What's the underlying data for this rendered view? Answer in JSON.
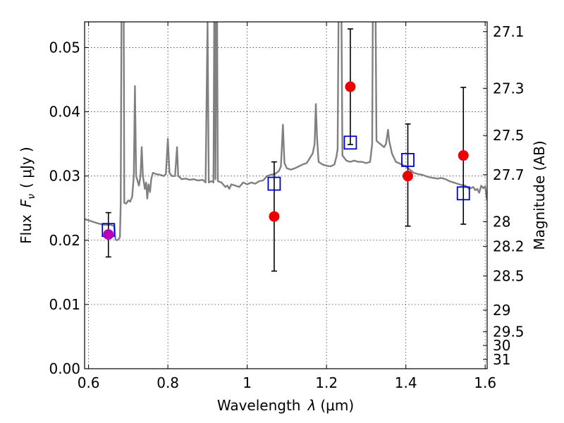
{
  "chart_data": {
    "type": "scatter",
    "xlabel": "Wavelength",
    "xlabel_symbol": "λ",
    "xlabel_unit": "(μm)",
    "ylabel": "Flux",
    "ylabel_symbol": "F",
    "ylabel_subscript": "ν",
    "ylabel_unit": "( μJy )",
    "y2label": "Magnitude (AB)",
    "xlim": [
      0.59,
      1.605
    ],
    "ylim": [
      0.0,
      0.054
    ],
    "grid": true,
    "x_ticks": [
      {
        "value": 0.6,
        "label": "0.6"
      },
      {
        "value": 0.8,
        "label": "0.8"
      },
      {
        "value": 1.0,
        "label": "1"
      },
      {
        "value": 1.2,
        "label": "1.2"
      },
      {
        "value": 1.4,
        "label": "1.4"
      },
      {
        "value": 1.6,
        "label": "1.6"
      }
    ],
    "y_ticks": [
      {
        "value": 0.0,
        "label": "0.00"
      },
      {
        "value": 0.01,
        "label": "0.01"
      },
      {
        "value": 0.02,
        "label": "0.02"
      },
      {
        "value": 0.03,
        "label": "0.03"
      },
      {
        "value": 0.04,
        "label": "0.04"
      },
      {
        "value": 0.05,
        "label": "0.05"
      }
    ],
    "y2_ticks": [
      {
        "mag": 27.1,
        "label": "27.1"
      },
      {
        "mag": 27.3,
        "label": "27.3"
      },
      {
        "mag": 27.5,
        "label": "27.5"
      },
      {
        "mag": 27.7,
        "label": "27.7"
      },
      {
        "mag": 28.0,
        "label": "28"
      },
      {
        "mag": 28.2,
        "label": "28.2"
      },
      {
        "mag": 28.5,
        "label": "28.5"
      },
      {
        "mag": 29.0,
        "label": "29"
      },
      {
        "mag": 29.5,
        "label": "29.5"
      },
      {
        "mag": 30.0,
        "label": "30"
      },
      {
        "mag": 31.0,
        "label": "31"
      }
    ],
    "observed": [
      {
        "x": 0.65,
        "y": 0.0209,
        "err": [
          0.0035,
          0.0034
        ],
        "color": "#bb00bb"
      },
      {
        "x": 1.068,
        "y": 0.0237,
        "err": [
          0.0085,
          0.0085
        ],
        "color": "#ee0000"
      },
      {
        "x": 1.26,
        "y": 0.0439,
        "err": [
          0.009,
          0.009
        ],
        "color": "#ee0000"
      },
      {
        "x": 1.405,
        "y": 0.03,
        "err": [
          0.0078,
          0.0081
        ],
        "color": "#ee0000"
      },
      {
        "x": 1.545,
        "y": 0.0332,
        "err": [
          0.0107,
          0.0106
        ],
        "color": "#ee0000"
      }
    ],
    "model_photometry": [
      {
        "x": 0.65,
        "y": 0.0216
      },
      {
        "x": 1.068,
        "y": 0.0288
      },
      {
        "x": 1.26,
        "y": 0.0352
      },
      {
        "x": 1.405,
        "y": 0.0325
      },
      {
        "x": 1.545,
        "y": 0.0273
      }
    ],
    "spectrum": [
      [
        0.59,
        0.0233
      ],
      [
        0.6,
        0.0231
      ],
      [
        0.61,
        0.0229
      ],
      [
        0.625,
        0.0226
      ],
      [
        0.64,
        0.0224
      ],
      [
        0.655,
        0.0224
      ],
      [
        0.665,
        0.0222
      ],
      [
        0.668,
        0.0201
      ],
      [
        0.672,
        0.02
      ],
      [
        0.676,
        0.0202
      ],
      [
        0.679,
        0.0205
      ],
      [
        0.681,
        0.0255
      ],
      [
        0.684,
        0.07
      ],
      [
        0.688,
        0.07
      ],
      [
        0.69,
        0.0258
      ],
      [
        0.695,
        0.0257
      ],
      [
        0.7,
        0.0262
      ],
      [
        0.705,
        0.026
      ],
      [
        0.71,
        0.0268
      ],
      [
        0.714,
        0.03
      ],
      [
        0.717,
        0.044
      ],
      [
        0.72,
        0.03
      ],
      [
        0.727,
        0.0285
      ],
      [
        0.731,
        0.03
      ],
      [
        0.734,
        0.0345
      ],
      [
        0.737,
        0.03
      ],
      [
        0.742,
        0.028
      ],
      [
        0.745,
        0.029
      ],
      [
        0.748,
        0.0265
      ],
      [
        0.751,
        0.0287
      ],
      [
        0.755,
        0.0275
      ],
      [
        0.758,
        0.0295
      ],
      [
        0.762,
        0.0305
      ],
      [
        0.77,
        0.0303
      ],
      [
        0.78,
        0.0302
      ],
      [
        0.79,
        0.03
      ],
      [
        0.795,
        0.0303
      ],
      [
        0.8,
        0.0358
      ],
      [
        0.804,
        0.0305
      ],
      [
        0.81,
        0.03
      ],
      [
        0.818,
        0.03
      ],
      [
        0.823,
        0.0345
      ],
      [
        0.826,
        0.03
      ],
      [
        0.835,
        0.0295
      ],
      [
        0.845,
        0.0296
      ],
      [
        0.855,
        0.0294
      ],
      [
        0.865,
        0.0295
      ],
      [
        0.875,
        0.0293
      ],
      [
        0.888,
        0.0294
      ],
      [
        0.895,
        0.029
      ],
      [
        0.9,
        0.054
      ],
      [
        0.903,
        0.029
      ],
      [
        0.91,
        0.0292
      ],
      [
        0.915,
        0.029
      ],
      [
        0.918,
        0.07
      ],
      [
        0.92,
        0.0295
      ],
      [
        0.923,
        0.07
      ],
      [
        0.926,
        0.0292
      ],
      [
        0.935,
        0.029
      ],
      [
        0.945,
        0.0283
      ],
      [
        0.95,
        0.0285
      ],
      [
        0.955,
        0.028
      ],
      [
        0.96,
        0.0287
      ],
      [
        0.97,
        0.0285
      ],
      [
        0.98,
        0.0283
      ],
      [
        0.99,
        0.029
      ],
      [
        1.0,
        0.0287
      ],
      [
        1.01,
        0.029
      ],
      [
        1.02,
        0.0288
      ],
      [
        1.03,
        0.0292
      ],
      [
        1.04,
        0.0293
      ],
      [
        1.05,
        0.03
      ],
      [
        1.06,
        0.0302
      ],
      [
        1.07,
        0.0303
      ],
      [
        1.08,
        0.0308
      ],
      [
        1.085,
        0.0315
      ],
      [
        1.09,
        0.038
      ],
      [
        1.094,
        0.032
      ],
      [
        1.1,
        0.0312
      ],
      [
        1.11,
        0.031
      ],
      [
        1.12,
        0.0312
      ],
      [
        1.13,
        0.0315
      ],
      [
        1.14,
        0.0318
      ],
      [
        1.15,
        0.032
      ],
      [
        1.16,
        0.033
      ],
      [
        1.165,
        0.0335
      ],
      [
        1.17,
        0.035
      ],
      [
        1.173,
        0.0412
      ],
      [
        1.176,
        0.036
      ],
      [
        1.18,
        0.0322
      ],
      [
        1.19,
        0.0318
      ],
      [
        1.2,
        0.0316
      ],
      [
        1.21,
        0.0315
      ],
      [
        1.22,
        0.0318
      ],
      [
        1.225,
        0.033
      ],
      [
        1.228,
        0.0342
      ],
      [
        1.232,
        0.07
      ],
      [
        1.236,
        0.07
      ],
      [
        1.24,
        0.0332
      ],
      [
        1.25,
        0.0324
      ],
      [
        1.26,
        0.0322
      ],
      [
        1.27,
        0.0324
      ],
      [
        1.28,
        0.0322
      ],
      [
        1.29,
        0.0322
      ],
      [
        1.3,
        0.032
      ],
      [
        1.31,
        0.0322
      ],
      [
        1.315,
        0.035
      ],
      [
        1.318,
        0.07
      ],
      [
        1.322,
        0.07
      ],
      [
        1.326,
        0.0355
      ],
      [
        1.335,
        0.035
      ],
      [
        1.345,
        0.0345
      ],
      [
        1.35,
        0.035
      ],
      [
        1.355,
        0.0372
      ],
      [
        1.358,
        0.0355
      ],
      [
        1.365,
        0.0335
      ],
      [
        1.375,
        0.0322
      ],
      [
        1.39,
        0.0318
      ],
      [
        1.4,
        0.0315
      ],
      [
        1.41,
        0.031
      ],
      [
        1.42,
        0.0305
      ],
      [
        1.43,
        0.0303
      ],
      [
        1.44,
        0.0302
      ],
      [
        1.45,
        0.03
      ],
      [
        1.46,
        0.0298
      ],
      [
        1.47,
        0.0297
      ],
      [
        1.48,
        0.0296
      ],
      [
        1.49,
        0.0297
      ],
      [
        1.5,
        0.0295
      ],
      [
        1.51,
        0.0292
      ],
      [
        1.52,
        0.029
      ],
      [
        1.53,
        0.0288
      ],
      [
        1.54,
        0.0286
      ],
      [
        1.55,
        0.0285
      ],
      [
        1.56,
        0.028
      ],
      [
        1.57,
        0.0283
      ],
      [
        1.575,
        0.0278
      ],
      [
        1.58,
        0.028
      ],
      [
        1.585,
        0.0274
      ],
      [
        1.59,
        0.0285
      ],
      [
        1.595,
        0.0281
      ],
      [
        1.6,
        0.0284
      ],
      [
        1.605,
        0.0262
      ]
    ]
  }
}
